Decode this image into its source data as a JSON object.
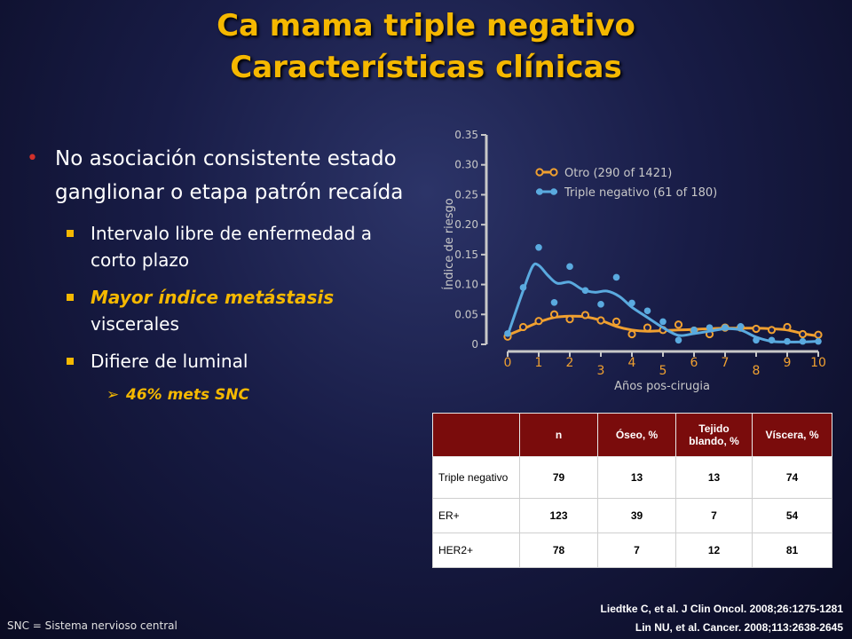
{
  "slide": {
    "title_line1": "Ca mama triple negativo",
    "title_line2": "Características clínicas",
    "bullets": {
      "main": "No asociación consistente estado ganglionar o etapa patrón recaída",
      "sub1": "Intervalo libre de enfermedad a corto plazo",
      "sub2_em": "Mayor índice metástasis",
      "sub2_rest": "viscerales",
      "sub3": "Difiere de luminal",
      "subsub": "46% mets SNC"
    },
    "references": {
      "line1": "Liedtke C, et al. J Clin Oncol. 2008;26:1275-1281",
      "line2": "Lin NU, et al. Cancer. 2008;113:2638-2645"
    },
    "footnote": "SNC = Sistema nervioso central"
  },
  "table": {
    "headers": [
      "",
      "n",
      "Óseo, %",
      "Tejido blando, %",
      "Víscera, %"
    ],
    "rows": [
      [
        "Triple negativo",
        "79",
        "13",
        "13",
        "74"
      ],
      [
        "ER+",
        "123",
        "39",
        "7",
        "54"
      ],
      [
        "HER2+",
        "78",
        "7",
        "12",
        "81"
      ]
    ]
  },
  "chart_data": {
    "type": "line",
    "xlabel": "Años pos-cirugia",
    "ylabel": "Índice de riesgo",
    "xlim": [
      0,
      10
    ],
    "ylim": [
      0,
      0.35
    ],
    "x_ticks": [
      "0",
      "1",
      "2",
      "3",
      "4",
      "5",
      "6",
      "7",
      "8",
      "9",
      "10"
    ],
    "y_ticks": [
      "0",
      "0.05",
      "0.10",
      "0.15",
      "0.20",
      "0.25",
      "0.30",
      "0.35"
    ],
    "legend_position": "top-right",
    "series": [
      {
        "name": "Otro (290 of 1421)",
        "color": "#f0a030",
        "marker": "open-circle",
        "points": [
          [
            0,
            0.013
          ],
          [
            0.5,
            0.029
          ],
          [
            1,
            0.039
          ],
          [
            1.5,
            0.05
          ],
          [
            2,
            0.042
          ],
          [
            2.5,
            0.049
          ],
          [
            3,
            0.04
          ],
          [
            3.5,
            0.038
          ],
          [
            4,
            0.017
          ],
          [
            4.5,
            0.028
          ],
          [
            5,
            0.024
          ],
          [
            5.5,
            0.033
          ],
          [
            6,
            0.023
          ],
          [
            6.5,
            0.017
          ],
          [
            7,
            0.028
          ],
          [
            7.5,
            0.028
          ],
          [
            8,
            0.026
          ],
          [
            8.5,
            0.024
          ],
          [
            9,
            0.029
          ],
          [
            9.5,
            0.017
          ],
          [
            10,
            0.016
          ]
        ],
        "curve": [
          [
            0,
            0.015
          ],
          [
            0.5,
            0.026
          ],
          [
            1,
            0.037
          ],
          [
            1.5,
            0.045
          ],
          [
            2,
            0.047
          ],
          [
            2.5,
            0.046
          ],
          [
            3,
            0.04
          ],
          [
            3.5,
            0.03
          ],
          [
            4,
            0.024
          ],
          [
            4.5,
            0.022
          ],
          [
            5,
            0.023
          ],
          [
            5.5,
            0.024
          ],
          [
            6,
            0.025
          ],
          [
            6.5,
            0.026
          ],
          [
            7,
            0.027
          ],
          [
            7.5,
            0.027
          ],
          [
            8,
            0.027
          ],
          [
            8.5,
            0.026
          ],
          [
            9,
            0.024
          ],
          [
            9.5,
            0.018
          ],
          [
            10,
            0.014
          ]
        ]
      },
      {
        "name": "Triple negativo (61 of 180)",
        "color": "#5aaadf",
        "marker": "filled-circle",
        "points": [
          [
            0,
            0.018
          ],
          [
            0.5,
            0.095
          ],
          [
            1,
            0.162
          ],
          [
            1.5,
            0.07
          ],
          [
            2,
            0.13
          ],
          [
            2.5,
            0.09
          ],
          [
            3,
            0.067
          ],
          [
            3.5,
            0.112
          ],
          [
            4,
            0.069
          ],
          [
            4.5,
            0.056
          ],
          [
            5,
            0.038
          ],
          [
            5.5,
            0.007
          ],
          [
            6,
            0.024
          ],
          [
            6.5,
            0.028
          ],
          [
            7,
            0.028
          ],
          [
            7.5,
            0.03
          ],
          [
            8,
            0.007
          ],
          [
            8.5,
            0.007
          ],
          [
            9,
            0.005
          ],
          [
            9.5,
            0.005
          ],
          [
            10,
            0.005
          ]
        ],
        "curve": [
          [
            0,
            0.015
          ],
          [
            0.5,
            0.09
          ],
          [
            0.8,
            0.13
          ],
          [
            1,
            0.132
          ],
          [
            1.3,
            0.115
          ],
          [
            1.6,
            0.102
          ],
          [
            2,
            0.104
          ],
          [
            2.4,
            0.092
          ],
          [
            2.8,
            0.087
          ],
          [
            3.2,
            0.089
          ],
          [
            3.6,
            0.08
          ],
          [
            4,
            0.062
          ],
          [
            4.5,
            0.045
          ],
          [
            5,
            0.028
          ],
          [
            5.5,
            0.015
          ],
          [
            6,
            0.018
          ],
          [
            6.5,
            0.022
          ],
          [
            7,
            0.026
          ],
          [
            7.5,
            0.024
          ],
          [
            8,
            0.012
          ],
          [
            8.5,
            0.005
          ],
          [
            9,
            0.004
          ],
          [
            9.5,
            0.004
          ],
          [
            10,
            0.005
          ]
        ]
      }
    ]
  }
}
